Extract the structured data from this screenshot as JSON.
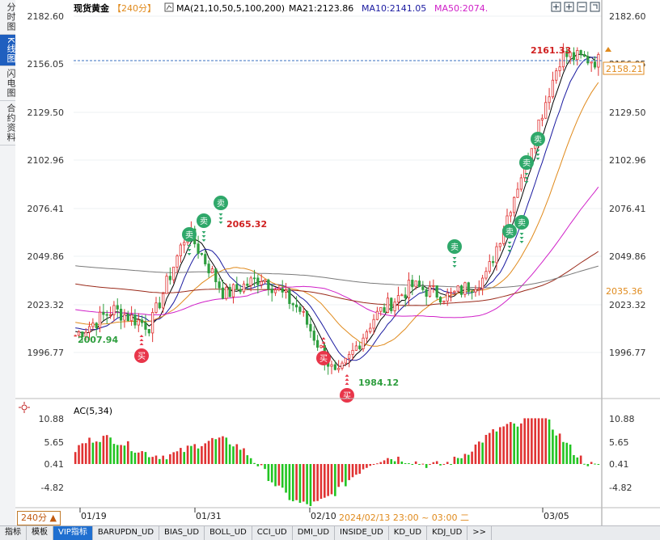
{
  "sidebar": {
    "tabs": [
      "分时图",
      "K线图",
      "闪电图",
      "合约资料"
    ]
  },
  "header": {
    "symbol": "现货黄金",
    "period": "【240分】",
    "ma_label": "MA(21,10,50,5,100,200)",
    "ma21": "MA21:2123.86",
    "ma10": "MA10:2141.05",
    "ma50": "MA50:2074."
  },
  "price_axis": {
    "ticks": [
      "2182.60",
      "2156.05",
      "2129.50",
      "2102.96",
      "2076.41",
      "2049.86",
      "2023.32",
      "1996.77"
    ],
    "current_price": "2158.21",
    "ma_tag": "2035.36"
  },
  "annotations": {
    "high": "2161.33",
    "mid_high": "2065.32",
    "low": "1984.12",
    "start_low": "2007.94"
  },
  "signals": {
    "buy": "买",
    "sell": "卖"
  },
  "ac": {
    "label": "AC(5,34)",
    "ticks": [
      "10.88",
      "5.65",
      "0.41",
      "-4.82"
    ]
  },
  "time_axis": {
    "dates": [
      "01/19",
      "01/31",
      "02/10",
      "03/05"
    ],
    "hint": "2024/02/13 23:00 ~ 03:00 二",
    "period_box": "240分 ▲"
  },
  "bottom_tabs": [
    "指标",
    "模板",
    "VIP指标",
    "BARUPDN_UD",
    "BIAS_UD",
    "BOLL_UD",
    "CCI_UD",
    "DMI_UD",
    "INSIDE_UD",
    "KD_UD",
    "KDJ_UD",
    ">>"
  ],
  "colors": {
    "up": "#e03232",
    "down": "#2e9e3e",
    "ma5": "#000000",
    "ma10": "#1a1aa0",
    "ma21": "#e08a1c",
    "ma50": "#d020c8",
    "ma100": "#9a2a1a",
    "ma200": "#7a7a7a",
    "accent": "#1f5fbf"
  },
  "chart_data": {
    "type": "candlestick",
    "price_range": [
      1985,
      2182.6
    ],
    "anchor_prices": [
      2007.94,
      2022,
      2013,
      2065.32,
      2030,
      2040,
      2022,
      1984.12,
      2018,
      2035,
      2029,
      2040,
      2100,
      2161.33,
      2158.21
    ],
    "ac_range": [
      -10,
      10.88
    ]
  }
}
